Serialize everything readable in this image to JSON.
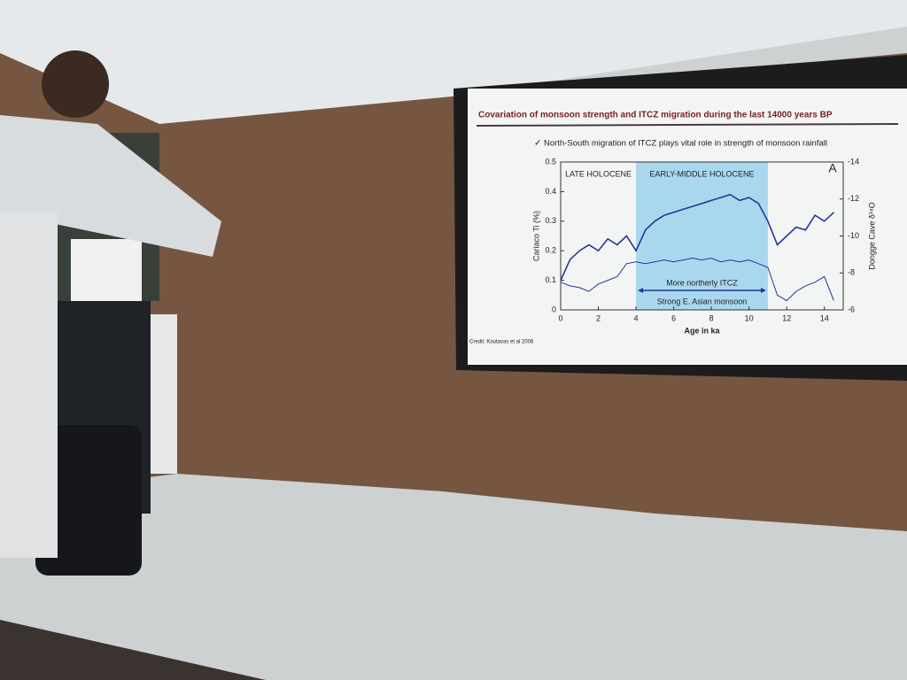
{
  "slide": {
    "title": "Covariation of monsoon strength and ITCZ migration during the last 14000 years BP",
    "bullet": "North-South migration of ITCZ plays vital role in strength of monsoon rainfall",
    "credit": "Credit: Koutavas et al 2006"
  },
  "chart_data": {
    "type": "line",
    "panel_label": "A",
    "x_label": "Age in ka",
    "y_label": "Cariaco Ti (%)",
    "y2_label": "Dongge Cave δ¹⁸O",
    "annotations": [
      "LATE HOLOCENE",
      "EARLY-MIDDLE HOLOCENE",
      "More northerly ITCZ",
      "Strong E. Asian monsoon"
    ],
    "highlight_x": [
      4,
      11
    ],
    "highlight_color": "#a9d8ee",
    "x": [
      0,
      0.5,
      1,
      1.5,
      2,
      2.5,
      3,
      3.5,
      4,
      4.5,
      5,
      5.5,
      6,
      6.5,
      7,
      7.5,
      8,
      8.5,
      9,
      9.5,
      10,
      10.5,
      11,
      11.5,
      12,
      12.5,
      13,
      13.5,
      14,
      14.5
    ],
    "series": [
      {
        "color": "#23359a",
        "values": [
          0.1,
          0.17,
          0.2,
          0.22,
          0.2,
          0.24,
          0.22,
          0.25,
          0.2,
          0.27,
          0.3,
          0.32,
          0.33,
          0.34,
          0.35,
          0.36,
          0.37,
          0.38,
          0.39,
          0.37,
          0.38,
          0.36,
          0.3,
          0.22,
          0.25,
          0.28,
          0.27,
          0.32,
          0.3,
          0.33
        ]
      },
      {
        "color": "#23359a",
        "axis": "y2",
        "values": [
          -7.5,
          -7.3,
          -7.2,
          -7,
          -7.4,
          -7.6,
          -7.8,
          -8.5,
          -8.6,
          -8.5,
          -8.6,
          -8.7,
          -8.6,
          -8.7,
          -8.8,
          -8.7,
          -8.8,
          -8.6,
          -8.7,
          -8.6,
          -8.7,
          -8.5,
          -8.3,
          -6.8,
          -6.5,
          -7,
          -7.3,
          -7.5,
          -7.8,
          -6.5
        ]
      }
    ],
    "xlim": [
      0,
      15
    ],
    "xticks": [
      0,
      2,
      4,
      6,
      8,
      10,
      12,
      14
    ],
    "ylim": [
      0,
      0.5
    ],
    "yticks": [
      0,
      0.1,
      0.2,
      0.3,
      0.4,
      0.5
    ],
    "y2lim": [
      -6,
      -14
    ],
    "y2ticks": [
      -14,
      -12,
      -10,
      -8,
      -6
    ]
  }
}
